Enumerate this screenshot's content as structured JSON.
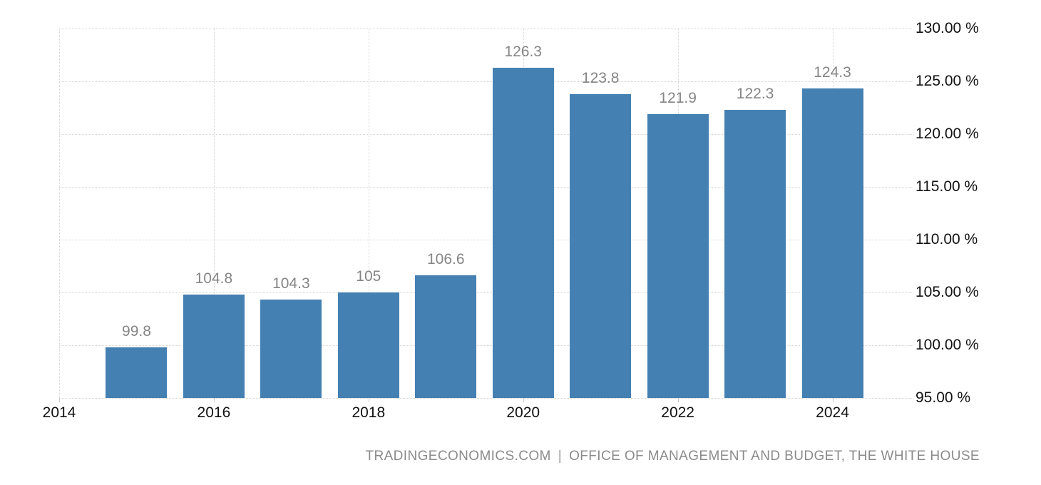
{
  "chart_data": {
    "type": "bar",
    "title": "",
    "categories": [
      2015,
      2016,
      2017,
      2018,
      2019,
      2020,
      2021,
      2022,
      2023,
      2024
    ],
    "values": [
      99.8,
      104.8,
      104.3,
      105,
      106.6,
      126.3,
      123.8,
      121.9,
      122.3,
      124.3
    ],
    "bar_value_labels": [
      "99.8",
      "104.8",
      "104.3",
      "105",
      "106.6",
      "126.3",
      "123.8",
      "121.9",
      "122.3",
      "124.3"
    ],
    "xlabel": "",
    "ylabel": "",
    "xlim": [
      2014,
      2025
    ],
    "ylim": [
      95,
      130
    ],
    "x_ticks": [
      2014,
      2016,
      2018,
      2020,
      2022,
      2024
    ],
    "x_tick_labels": [
      "2014",
      "2016",
      "2018",
      "2020",
      "2022",
      "2024"
    ],
    "y_ticks": [
      95,
      100,
      105,
      110,
      115,
      120,
      125,
      130
    ],
    "y_tick_labels": [
      "95.00 %",
      "100.00 %",
      "105.00 %",
      "110.00 %",
      "115.00 %",
      "120.00 %",
      "125.00 %",
      "130.00 %"
    ],
    "y_axis_side": "right",
    "grid": true,
    "legend": false,
    "bar_color": "#4580b2",
    "value_label_color": "#858585",
    "axis_text_color": "#111111",
    "gridline_color": "#d5d5d5"
  },
  "footer": {
    "watermark": "TRADINGECONOMICS.COM",
    "separator": "|",
    "source": "OFFICE OF MANAGEMENT AND BUDGET, THE WHITE HOUSE"
  }
}
